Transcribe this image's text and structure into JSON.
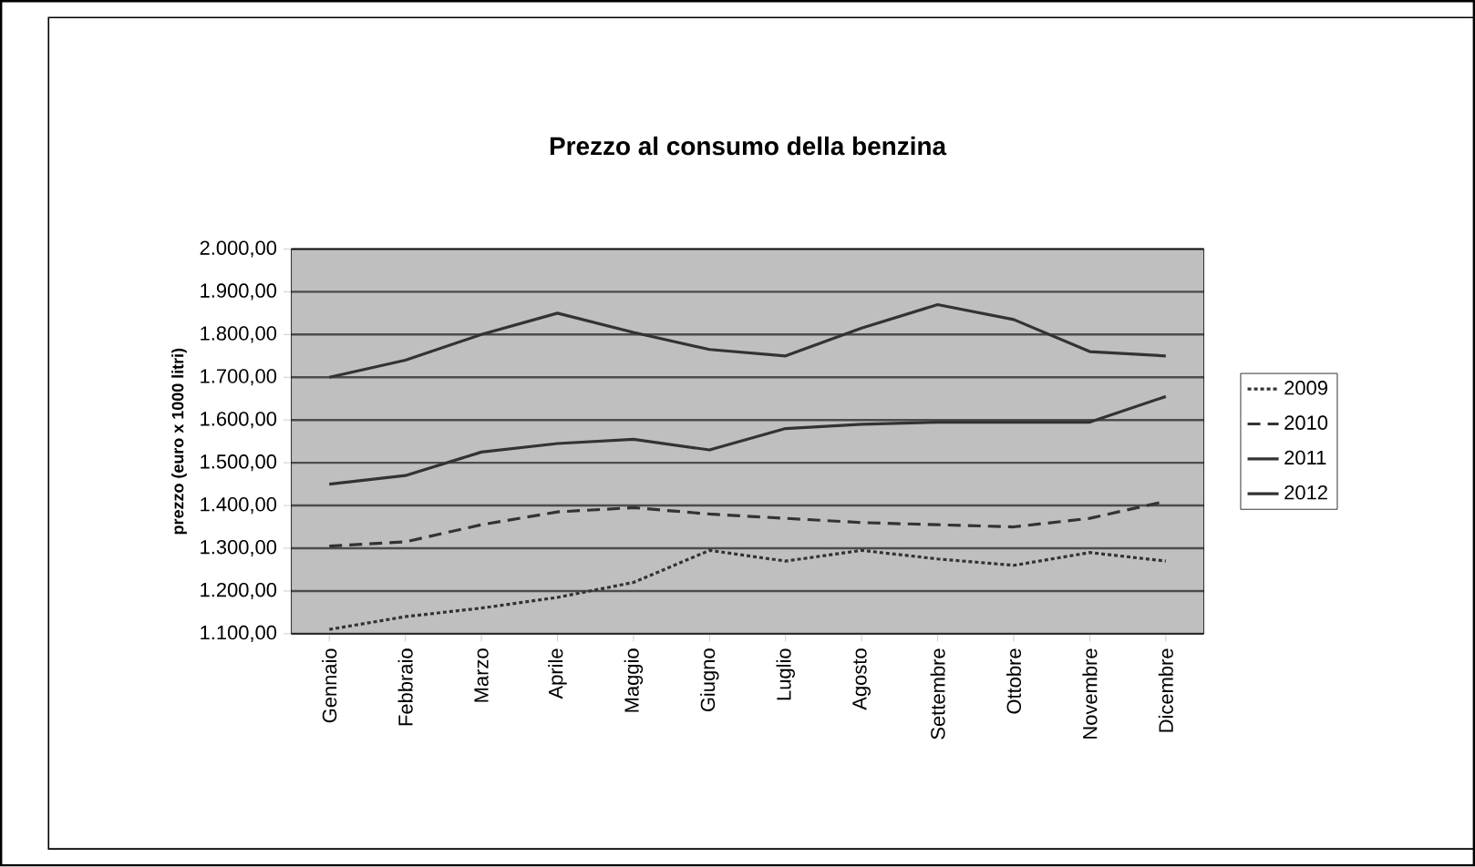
{
  "chart_data": {
    "type": "line",
    "title": "Prezzo al consumo della benzina",
    "ylabel": "prezzo (euro x 1000 litri)",
    "categories": [
      "Gennaio",
      "Febbraio",
      "Marzo",
      "Aprile",
      "Maggio",
      "Giugno",
      "Luglio",
      "Agosto",
      "Settembre",
      "Ottobre",
      "Novembre",
      "Dicembre"
    ],
    "series": [
      {
        "name": "2009",
        "color": "#333333",
        "line_style": "dotted",
        "values": [
          1110,
          1140,
          1160,
          1185,
          1220,
          1295,
          1270,
          1295,
          1275,
          1260,
          1290,
          1270
        ]
      },
      {
        "name": "2010",
        "color": "#333333",
        "line_style": "dashed",
        "values": [
          1305,
          1315,
          1355,
          1385,
          1395,
          1380,
          1370,
          1360,
          1355,
          1350,
          1370,
          1410
        ]
      },
      {
        "name": "2011",
        "color": "#333333",
        "line_style": "solid",
        "values": [
          1450,
          1470,
          1525,
          1545,
          1555,
          1530,
          1580,
          1590,
          1595,
          1595,
          1595,
          1655
        ]
      },
      {
        "name": "2012",
        "color": "#333333",
        "line_style": "solid",
        "values": [
          1700,
          1740,
          1800,
          1850,
          1805,
          1765,
          1750,
          1815,
          1870,
          1835,
          1760,
          1750
        ]
      }
    ],
    "ylim": [
      1100,
      2000
    ],
    "yticks": [
      {
        "value": 1100,
        "label": "1.100,00"
      },
      {
        "value": 1200,
        "label": "1.200,00"
      },
      {
        "value": 1300,
        "label": "1.300,00"
      },
      {
        "value": 1400,
        "label": "1.400,00"
      },
      {
        "value": 1500,
        "label": "1.500,00"
      },
      {
        "value": 1600,
        "label": "1.600,00"
      },
      {
        "value": 1700,
        "label": "1.700,00"
      },
      {
        "value": 1800,
        "label": "1.800,00"
      },
      {
        "value": 1900,
        "label": "1.900,00"
      },
      {
        "value": 2000,
        "label": "2.000,00"
      }
    ],
    "grid": "y",
    "legend": "right",
    "marker": "none"
  }
}
